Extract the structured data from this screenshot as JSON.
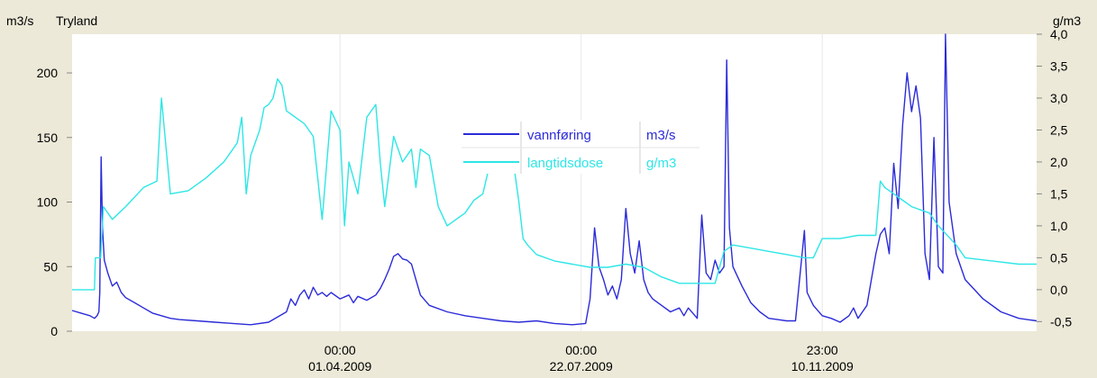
{
  "chart_data": {
    "type": "line",
    "left_axis_title": "m3/s",
    "station_name": "Tryland",
    "right_axis_title": "g/m3",
    "left_axis": {
      "range": [
        0,
        230
      ],
      "ticks": [
        "0",
        "50",
        "100",
        "150",
        "200"
      ]
    },
    "right_axis": {
      "range": [
        -0.65,
        4.0
      ],
      "ticks": [
        "-0,5",
        "0,0",
        "0,5",
        "1,0",
        "1,5",
        "2,0",
        "2,5",
        "3,0",
        "3,5",
        "4,0"
      ]
    },
    "x_ticks": [
      {
        "time": "00:00",
        "date": "01.04.2009",
        "t": 0.3
      },
      {
        "time": "00:00",
        "date": "22.07.2009",
        "t": 0.57
      },
      {
        "time": "23:00",
        "date": "10.11.2009",
        "t": 0.84
      }
    ],
    "legend": {
      "position": "center-top"
    },
    "series": [
      {
        "name": "vannføring",
        "unit": "m3/s",
        "axis": "left",
        "color": "#2b2bd9",
        "points": [
          [
            0.0,
            16
          ],
          [
            0.01,
            14
          ],
          [
            0.02,
            12
          ],
          [
            0.025,
            10
          ],
          [
            0.028,
            12
          ],
          [
            0.03,
            15
          ],
          [
            0.031,
            30
          ],
          [
            0.0325,
            135
          ],
          [
            0.034,
            80
          ],
          [
            0.036,
            55
          ],
          [
            0.04,
            45
          ],
          [
            0.045,
            35
          ],
          [
            0.05,
            38
          ],
          [
            0.055,
            30
          ],
          [
            0.06,
            26
          ],
          [
            0.07,
            22
          ],
          [
            0.08,
            18
          ],
          [
            0.09,
            14
          ],
          [
            0.1,
            12
          ],
          [
            0.11,
            10
          ],
          [
            0.12,
            9
          ],
          [
            0.14,
            8
          ],
          [
            0.16,
            7
          ],
          [
            0.18,
            6
          ],
          [
            0.2,
            5
          ],
          [
            0.22,
            7
          ],
          [
            0.24,
            15
          ],
          [
            0.245,
            25
          ],
          [
            0.25,
            20
          ],
          [
            0.255,
            28
          ],
          [
            0.26,
            32
          ],
          [
            0.265,
            25
          ],
          [
            0.27,
            34
          ],
          [
            0.275,
            28
          ],
          [
            0.28,
            30
          ],
          [
            0.285,
            27
          ],
          [
            0.29,
            30
          ],
          [
            0.3,
            25
          ],
          [
            0.31,
            28
          ],
          [
            0.315,
            22
          ],
          [
            0.32,
            27
          ],
          [
            0.33,
            24
          ],
          [
            0.34,
            28
          ],
          [
            0.345,
            33
          ],
          [
            0.35,
            40
          ],
          [
            0.355,
            48
          ],
          [
            0.36,
            58
          ],
          [
            0.365,
            60
          ],
          [
            0.37,
            56
          ],
          [
            0.375,
            55
          ],
          [
            0.38,
            52
          ],
          [
            0.385,
            40
          ],
          [
            0.39,
            28
          ],
          [
            0.4,
            20
          ],
          [
            0.42,
            15
          ],
          [
            0.44,
            12
          ],
          [
            0.46,
            10
          ],
          [
            0.48,
            8
          ],
          [
            0.5,
            7
          ],
          [
            0.52,
            8
          ],
          [
            0.54,
            6
          ],
          [
            0.56,
            5
          ],
          [
            0.575,
            6
          ],
          [
            0.58,
            25
          ],
          [
            0.585,
            80
          ],
          [
            0.59,
            50
          ],
          [
            0.595,
            40
          ],
          [
            0.6,
            28
          ],
          [
            0.605,
            35
          ],
          [
            0.61,
            25
          ],
          [
            0.615,
            40
          ],
          [
            0.62,
            95
          ],
          [
            0.625,
            60
          ],
          [
            0.63,
            45
          ],
          [
            0.635,
            70
          ],
          [
            0.64,
            40
          ],
          [
            0.645,
            30
          ],
          [
            0.65,
            25
          ],
          [
            0.66,
            20
          ],
          [
            0.67,
            15
          ],
          [
            0.68,
            18
          ],
          [
            0.685,
            12
          ],
          [
            0.69,
            18
          ],
          [
            0.695,
            14
          ],
          [
            0.7,
            10
          ],
          [
            0.705,
            90
          ],
          [
            0.71,
            45
          ],
          [
            0.715,
            40
          ],
          [
            0.72,
            55
          ],
          [
            0.725,
            45
          ],
          [
            0.73,
            50
          ],
          [
            0.733,
            210
          ],
          [
            0.736,
            80
          ],
          [
            0.74,
            50
          ],
          [
            0.75,
            35
          ],
          [
            0.76,
            22
          ],
          [
            0.77,
            15
          ],
          [
            0.78,
            10
          ],
          [
            0.79,
            9
          ],
          [
            0.8,
            8
          ],
          [
            0.81,
            8
          ],
          [
            0.82,
            78
          ],
          [
            0.823,
            30
          ],
          [
            0.83,
            20
          ],
          [
            0.84,
            12
          ],
          [
            0.85,
            10
          ],
          [
            0.86,
            7
          ],
          [
            0.87,
            12
          ],
          [
            0.875,
            18
          ],
          [
            0.88,
            10
          ],
          [
            0.885,
            15
          ],
          [
            0.89,
            20
          ],
          [
            0.895,
            40
          ],
          [
            0.9,
            60
          ],
          [
            0.905,
            75
          ],
          [
            0.91,
            80
          ],
          [
            0.915,
            60
          ],
          [
            0.92,
            130
          ],
          [
            0.925,
            95
          ],
          [
            0.93,
            160
          ],
          [
            0.935,
            200
          ],
          [
            0.94,
            170
          ],
          [
            0.945,
            190
          ],
          [
            0.95,
            165
          ],
          [
            0.955,
            60
          ],
          [
            0.96,
            40
          ],
          [
            0.965,
            150
          ],
          [
            0.97,
            50
          ],
          [
            0.975,
            45
          ],
          [
            0.978,
            230
          ],
          [
            0.982,
            100
          ],
          [
            0.99,
            60
          ],
          [
            1.0,
            40
          ],
          [
            1.02,
            25
          ],
          [
            1.04,
            15
          ],
          [
            1.06,
            10
          ],
          [
            1.08,
            8
          ]
        ]
      },
      {
        "name": "langtidsdose",
        "unit": "g/m3",
        "axis": "right",
        "color": "#2ee6e6",
        "points": [
          [
            0.0,
            0.0
          ],
          [
            0.025,
            0.0
          ],
          [
            0.026,
            0.5
          ],
          [
            0.032,
            0.5
          ],
          [
            0.035,
            1.3
          ],
          [
            0.045,
            1.1
          ],
          [
            0.06,
            1.3
          ],
          [
            0.08,
            1.6
          ],
          [
            0.095,
            1.7
          ],
          [
            0.1,
            3.0
          ],
          [
            0.11,
            1.5
          ],
          [
            0.13,
            1.55
          ],
          [
            0.15,
            1.75
          ],
          [
            0.17,
            2.0
          ],
          [
            0.185,
            2.3
          ],
          [
            0.19,
            2.7
          ],
          [
            0.195,
            1.5
          ],
          [
            0.2,
            2.1
          ],
          [
            0.21,
            2.5
          ],
          [
            0.215,
            2.85
          ],
          [
            0.22,
            2.9
          ],
          [
            0.225,
            3.0
          ],
          [
            0.23,
            3.3
          ],
          [
            0.235,
            3.2
          ],
          [
            0.24,
            2.8
          ],
          [
            0.25,
            2.7
          ],
          [
            0.26,
            2.6
          ],
          [
            0.27,
            2.4
          ],
          [
            0.28,
            1.1
          ],
          [
            0.29,
            2.8
          ],
          [
            0.3,
            2.5
          ],
          [
            0.305,
            1.0
          ],
          [
            0.31,
            2.0
          ],
          [
            0.32,
            1.5
          ],
          [
            0.33,
            2.7
          ],
          [
            0.34,
            2.9
          ],
          [
            0.345,
            2.0
          ],
          [
            0.35,
            1.3
          ],
          [
            0.36,
            2.4
          ],
          [
            0.37,
            2.0
          ],
          [
            0.38,
            2.2
          ],
          [
            0.385,
            1.6
          ],
          [
            0.39,
            2.2
          ],
          [
            0.4,
            2.1
          ],
          [
            0.41,
            1.3
          ],
          [
            0.42,
            1.0
          ],
          [
            0.43,
            1.1
          ],
          [
            0.44,
            1.2
          ],
          [
            0.45,
            1.4
          ],
          [
            0.46,
            1.5
          ],
          [
            0.47,
            2.1
          ],
          [
            0.48,
            2.3
          ],
          [
            0.49,
            2.4
          ],
          [
            0.5,
            1.4
          ],
          [
            0.505,
            0.8
          ],
          [
            0.51,
            0.7
          ],
          [
            0.52,
            0.55
          ],
          [
            0.54,
            0.45
          ],
          [
            0.56,
            0.4
          ],
          [
            0.58,
            0.35
          ],
          [
            0.6,
            0.35
          ],
          [
            0.62,
            0.4
          ],
          [
            0.64,
            0.35
          ],
          [
            0.66,
            0.2
          ],
          [
            0.68,
            0.1
          ],
          [
            0.7,
            0.1
          ],
          [
            0.72,
            0.1
          ],
          [
            0.73,
            0.6
          ],
          [
            0.74,
            0.7
          ],
          [
            0.76,
            0.65
          ],
          [
            0.78,
            0.6
          ],
          [
            0.8,
            0.55
          ],
          [
            0.82,
            0.5
          ],
          [
            0.83,
            0.5
          ],
          [
            0.84,
            0.8
          ],
          [
            0.86,
            0.8
          ],
          [
            0.88,
            0.85
          ],
          [
            0.9,
            0.85
          ],
          [
            0.905,
            1.7
          ],
          [
            0.91,
            1.6
          ],
          [
            0.92,
            1.5
          ],
          [
            0.93,
            1.4
          ],
          [
            0.94,
            1.3
          ],
          [
            0.95,
            1.25
          ],
          [
            0.96,
            1.2
          ],
          [
            0.97,
            1.0
          ],
          [
            0.99,
            0.7
          ],
          [
            1.0,
            0.5
          ],
          [
            1.03,
            0.45
          ],
          [
            1.06,
            0.4
          ],
          [
            1.08,
            0.4
          ]
        ]
      }
    ]
  }
}
